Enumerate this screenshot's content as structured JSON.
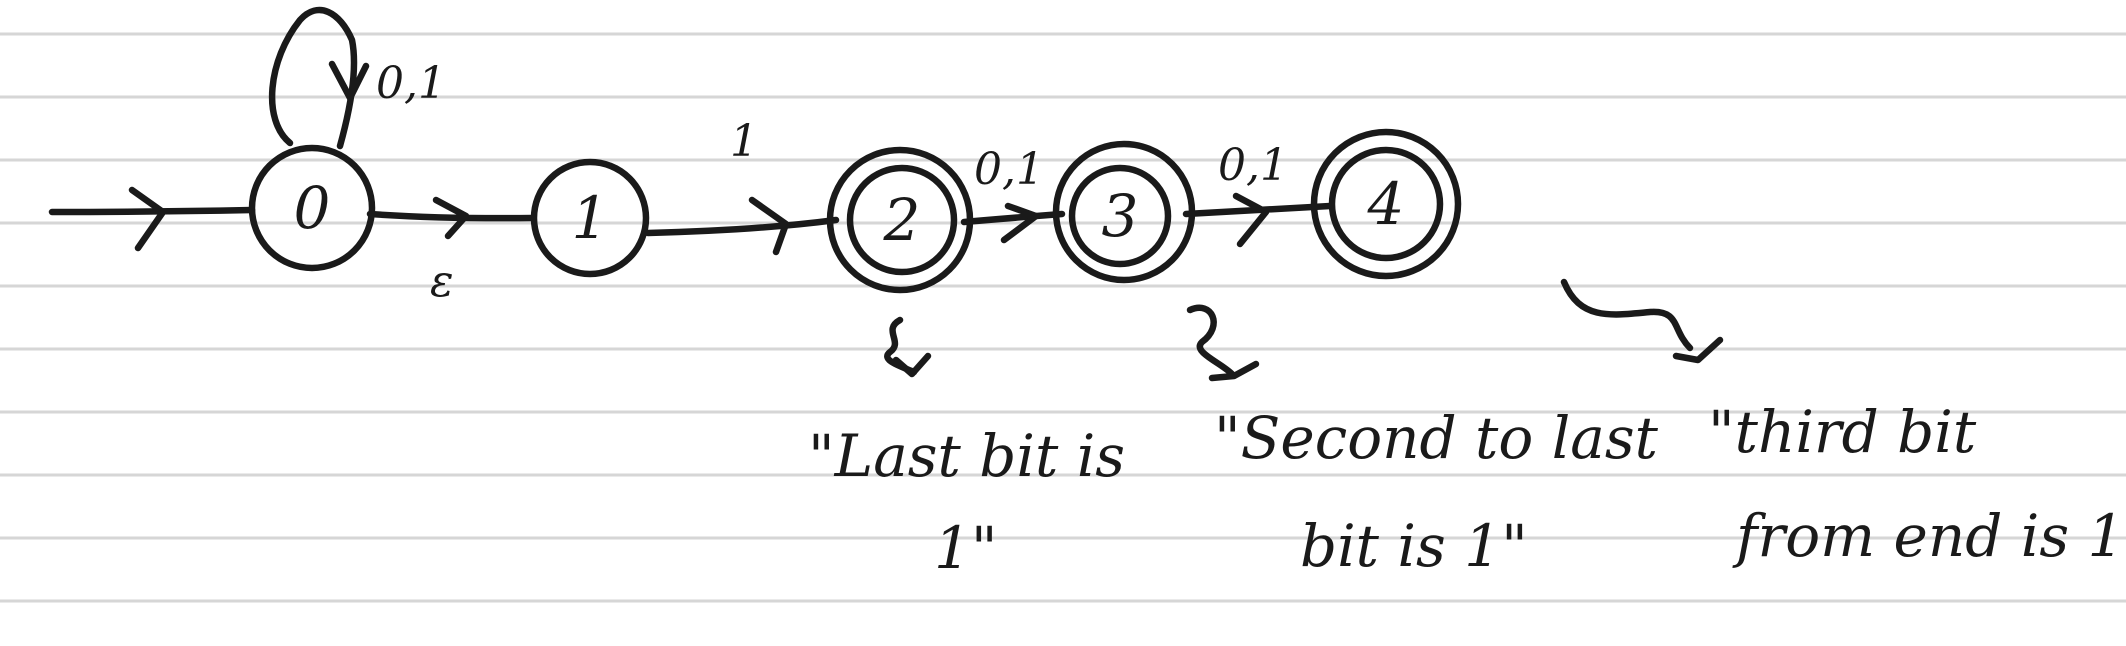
{
  "colors": {
    "ink": "#1a1a1a",
    "paper": "#ffffff",
    "rule": "#d6d6d6"
  },
  "states": [
    {
      "id": "q0",
      "label": "0",
      "accepting": false,
      "start": true
    },
    {
      "id": "q1",
      "label": "1",
      "accepting": false,
      "start": false
    },
    {
      "id": "q2",
      "label": "2",
      "accepting": true,
      "start": false
    },
    {
      "id": "q3",
      "label": "3",
      "accepting": true,
      "start": false
    },
    {
      "id": "q4",
      "label": "4",
      "accepting": true,
      "start": false
    }
  ],
  "transitions": [
    {
      "from": "q0",
      "to": "q0",
      "label": "0,1"
    },
    {
      "from": "q0",
      "to": "q1",
      "label": "ε"
    },
    {
      "from": "q1",
      "to": "q2",
      "label": "1"
    },
    {
      "from": "q2",
      "to": "q3",
      "label": "0,1"
    },
    {
      "from": "q3",
      "to": "q4",
      "label": "0,1"
    }
  ],
  "annotations": [
    {
      "target": "q2",
      "lines": [
        "\"Last bit is",
        "1\""
      ]
    },
    {
      "target": "q3",
      "lines": [
        "\"Second to last",
        "bit is 1\""
      ]
    },
    {
      "target": "q4",
      "lines": [
        "\"third bit",
        "from end is 1\"."
      ]
    }
  ]
}
